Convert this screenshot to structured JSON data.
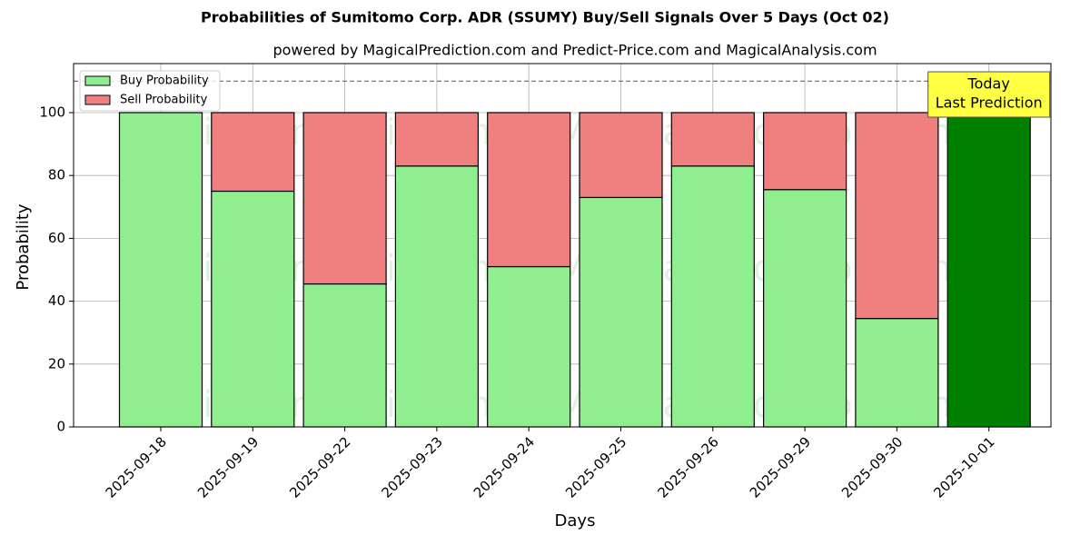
{
  "chart_data": {
    "type": "stacked_bar",
    "title": "Probabilities of Sumitomo Corp. ADR (SSUMY) Buy/Sell Signals Over 5 Days (Oct 02)",
    "subtitle": "powered by MagicalPrediction.com and Predict-Price.com and MagicalAnalysis.com",
    "xlabel": "Days",
    "ylabel": "Probability",
    "categories": [
      "2025-09-18",
      "2025-09-19",
      "2025-09-22",
      "2025-09-23",
      "2025-09-24",
      "2025-09-25",
      "2025-09-26",
      "2025-09-29",
      "2025-09-30",
      "2025-10-01"
    ],
    "series": [
      {
        "name": "Buy Probability",
        "color": "#90ee90",
        "colors": [
          "#90ee90",
          "#90ee90",
          "#90ee90",
          "#90ee90",
          "#90ee90",
          "#90ee90",
          "#90ee90",
          "#90ee90",
          "#90ee90",
          "#008000"
        ],
        "values": [
          100,
          75,
          45.5,
          83,
          51,
          73,
          83,
          75.5,
          34.5,
          100
        ]
      },
      {
        "name": "Sell Probability",
        "color": "#f08080",
        "values": [
          0,
          25,
          54.5,
          17,
          49,
          27,
          17,
          24.5,
          65.5,
          0
        ]
      }
    ],
    "ylim": [
      0,
      115.6
    ],
    "yticks": [
      0,
      20,
      40,
      60,
      80,
      100
    ],
    "grid": true,
    "hline": 110,
    "legend": "upper left",
    "annotation": {
      "lines": [
        "Today",
        "Last Prediction"
      ],
      "category": "2025-10-01"
    },
    "watermarks": [
      "MagicalAnalysis.com",
      "MagicalPrediction.com"
    ]
  }
}
